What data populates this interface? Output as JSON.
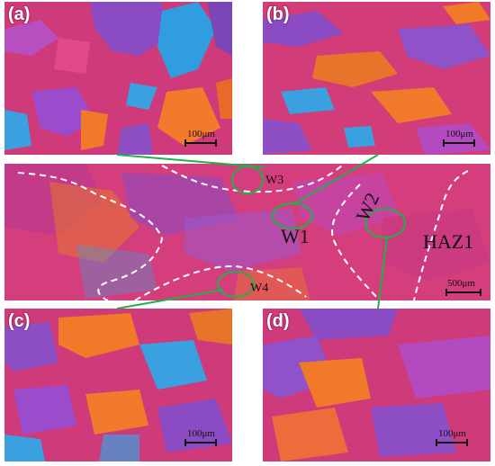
{
  "panels": {
    "a": {
      "label": "(a)",
      "scale": "100μm"
    },
    "b": {
      "label": "(b)",
      "scale": "100μm"
    },
    "c": {
      "label": "(c)",
      "scale": "100μm"
    },
    "d": {
      "label": "(d)",
      "scale": "100μm"
    },
    "main": {
      "scale": "500μm"
    }
  },
  "regions": {
    "w1": "W1",
    "w2": "W2",
    "w3": "W3",
    "w4": "W4",
    "haz1": "HAZ1"
  },
  "colors": {
    "matrix": "#d63c7a",
    "blue_phase": "#3aa0e0",
    "orange_phase": "#f07a2a",
    "purple_phase": "#8e4fc4",
    "boundary_line": "#ffffff",
    "callout_line": "#22b04a"
  }
}
